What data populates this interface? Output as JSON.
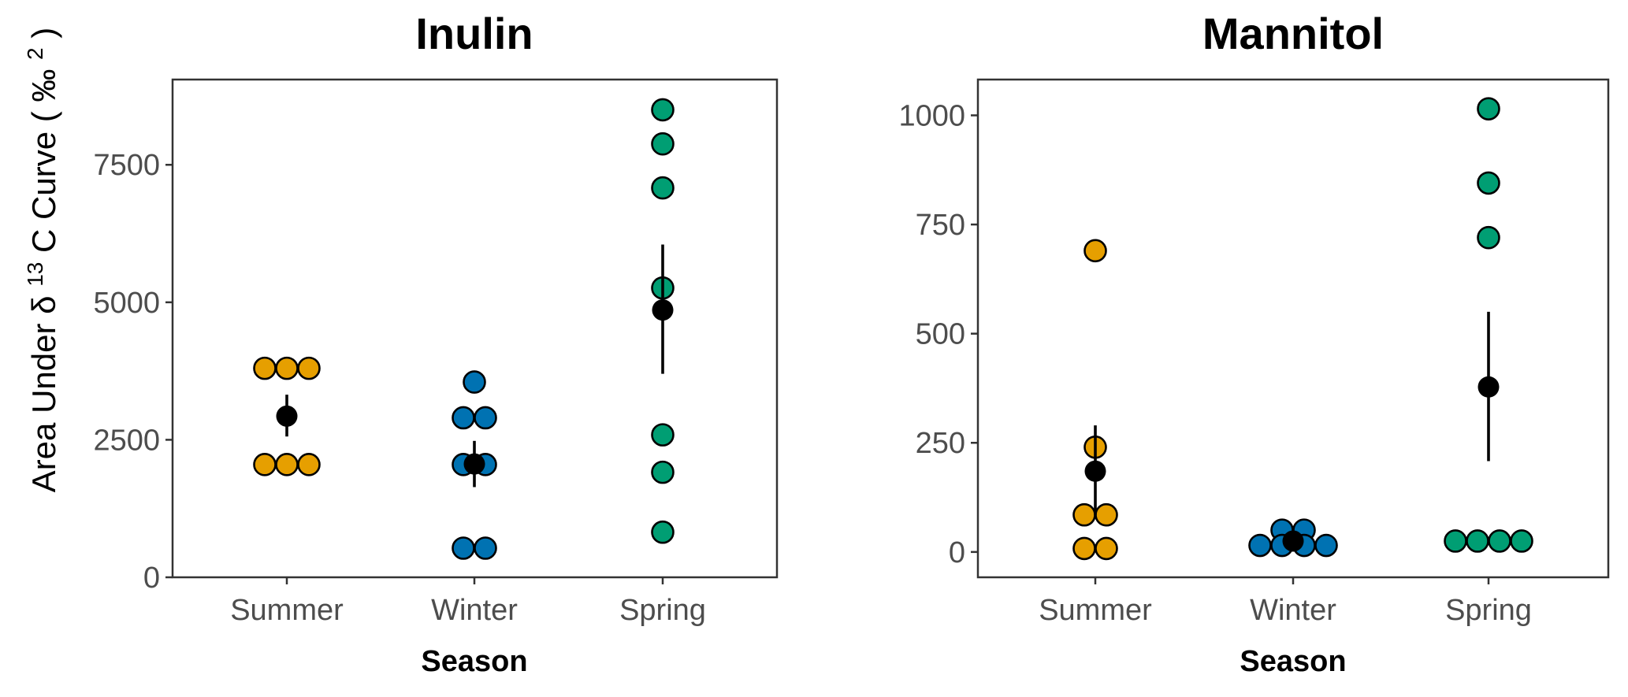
{
  "figure": {
    "y_axis_label": {
      "part1": "Area Under ",
      "delta": "δ",
      "sup13": "13",
      "part2": " C  Curve (",
      "permil": "‰",
      "sup2": "2",
      "close": " )"
    },
    "x_axis_label": "Season"
  },
  "chart_data": [
    {
      "type": "scatter",
      "title": "Inulin",
      "xlabel": "Season",
      "ylabel": "Area Under δ13C Curve (‰2)",
      "categories": [
        "Summer",
        "Winter",
        "Spring"
      ],
      "category_colors": {
        "Summer": "#E69F00",
        "Winter": "#0072B2",
        "Spring": "#009E73"
      },
      "yticks": [
        0,
        2500,
        5000,
        7500
      ],
      "ytick_labels": [
        "0",
        "2500",
        "5000",
        "7500"
      ],
      "ylim": [
        0,
        9050
      ],
      "grid": false,
      "series": [
        {
          "category": "Summer",
          "values": [
            3800,
            3800,
            3800,
            2050,
            2050,
            2050
          ]
        },
        {
          "category": "Winter",
          "values": [
            3550,
            2900,
            2900,
            2050,
            2050,
            530,
            530
          ]
        },
        {
          "category": "Spring",
          "values": [
            8500,
            7880,
            7080,
            5260,
            2590,
            1910,
            820
          ]
        }
      ],
      "summary": [
        {
          "category": "Summer",
          "mean": 2930,
          "lower": 2560,
          "upper": 3320
        },
        {
          "category": "Winter",
          "mean": 2060,
          "lower": 1640,
          "upper": 2480
        },
        {
          "category": "Spring",
          "mean": 4860,
          "lower": 3700,
          "upper": 6050
        }
      ]
    },
    {
      "type": "scatter",
      "title": "Mannitol",
      "xlabel": "Season",
      "ylabel": "",
      "categories": [
        "Summer",
        "Winter",
        "Spring"
      ],
      "category_colors": {
        "Summer": "#E69F00",
        "Winter": "#0072B2",
        "Spring": "#009E73"
      },
      "yticks": [
        0,
        250,
        500,
        750,
        1000
      ],
      "ytick_labels": [
        "0",
        "250",
        "500",
        "750",
        "1000"
      ],
      "ylim": [
        -58,
        1082
      ],
      "grid": false,
      "series": [
        {
          "category": "Summer",
          "values": [
            690,
            240,
            85,
            85,
            8,
            8
          ]
        },
        {
          "category": "Winter",
          "values": [
            50,
            50,
            15,
            15,
            15,
            15
          ]
        },
        {
          "category": "Spring",
          "values": [
            1015,
            845,
            720,
            25,
            25,
            25,
            25
          ]
        }
      ],
      "summary": [
        {
          "category": "Summer",
          "mean": 185,
          "lower": 85,
          "upper": 290
        },
        {
          "category": "Winter",
          "mean": 25,
          "lower": 12,
          "upper": 38
        },
        {
          "category": "Spring",
          "mean": 378,
          "lower": 208,
          "upper": 550
        }
      ]
    }
  ]
}
